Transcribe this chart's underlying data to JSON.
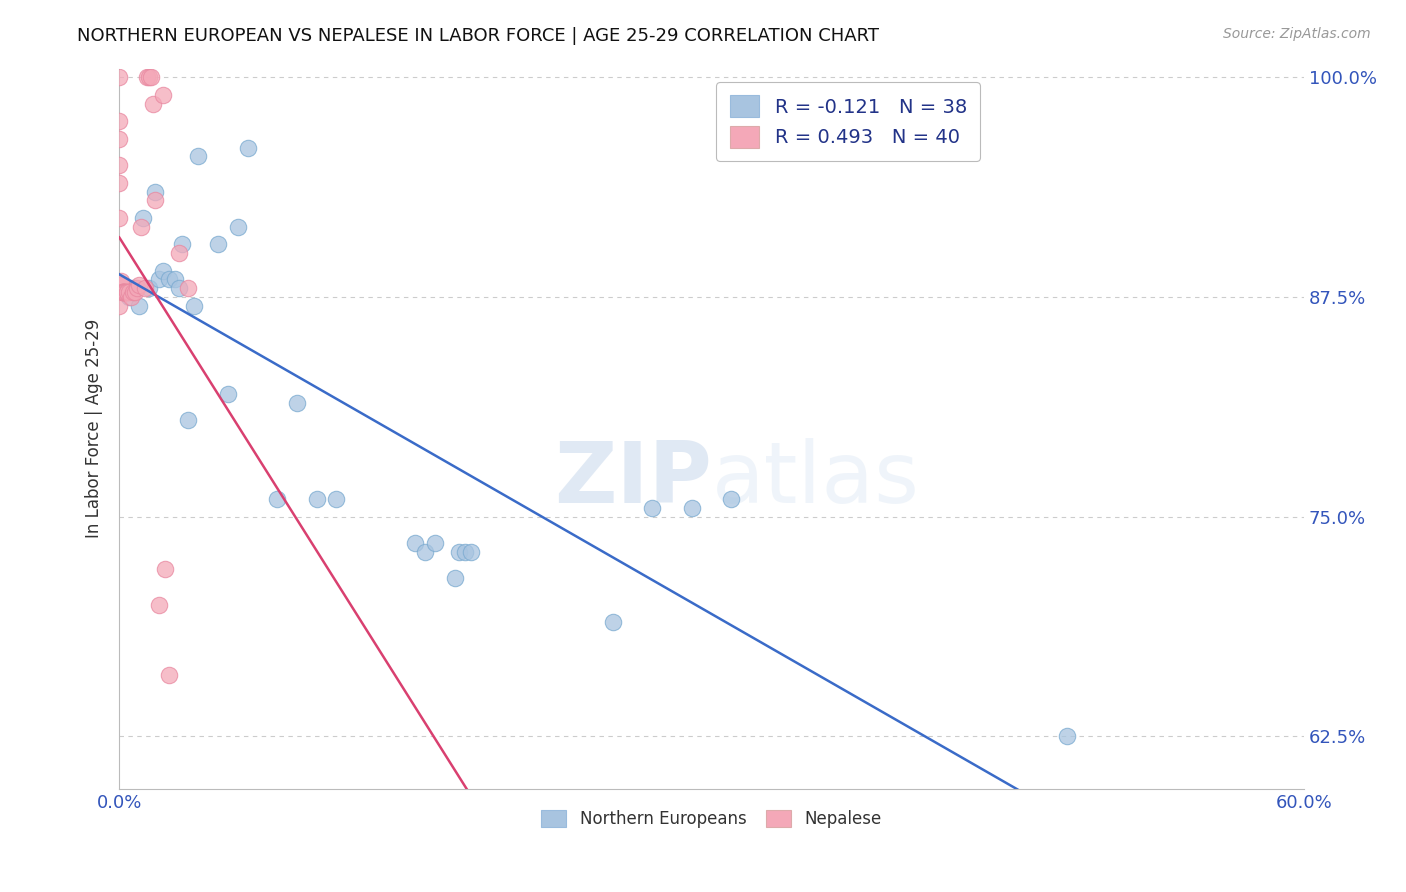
{
  "title": "NORTHERN EUROPEAN VS NEPALESE IN LABOR FORCE | AGE 25-29 CORRELATION CHART",
  "source": "Source: ZipAtlas.com",
  "ylabel": "In Labor Force | Age 25-29",
  "xlim": [
    0.0,
    0.6
  ],
  "ylim": [
    0.595,
    1.005
  ],
  "xticks": [
    0.0,
    0.1,
    0.2,
    0.3,
    0.4,
    0.5,
    0.6
  ],
  "xticklabels": [
    "0.0%",
    "",
    "",
    "",
    "",
    "",
    "60.0%"
  ],
  "yticks": [
    0.625,
    0.75,
    0.875,
    1.0
  ],
  "yticklabels": [
    "62.5%",
    "75.0%",
    "87.5%",
    "100.0%"
  ],
  "legend_blue_label": "R = -0.121   N = 38",
  "legend_pink_label": "R = 0.493   N = 40",
  "blue_color": "#a8c4e0",
  "pink_color": "#f4a8b8",
  "blue_line_color": "#3a6bc8",
  "pink_line_color": "#d94070",
  "blue_points_x": [
    0.002,
    0.003,
    0.005,
    0.007,
    0.008,
    0.01,
    0.012,
    0.015,
    0.018,
    0.02,
    0.022,
    0.025,
    0.028,
    0.03,
    0.032,
    0.035,
    0.038,
    0.04,
    0.05,
    0.055,
    0.06,
    0.065,
    0.08,
    0.09,
    0.1,
    0.11,
    0.15,
    0.155,
    0.16,
    0.17,
    0.172,
    0.175,
    0.178,
    0.25,
    0.27,
    0.29,
    0.31,
    0.48
  ],
  "blue_points_y": [
    0.88,
    0.88,
    0.875,
    0.88,
    0.88,
    0.87,
    0.92,
    0.88,
    0.935,
    0.885,
    0.89,
    0.885,
    0.885,
    0.88,
    0.905,
    0.805,
    0.87,
    0.955,
    0.905,
    0.82,
    0.915,
    0.96,
    0.76,
    0.815,
    0.76,
    0.76,
    0.735,
    0.73,
    0.735,
    0.715,
    0.73,
    0.73,
    0.73,
    0.69,
    0.755,
    0.755,
    0.76,
    0.625
  ],
  "pink_points_x": [
    0.0,
    0.0,
    0.0,
    0.0,
    0.0,
    0.0,
    0.0,
    0.001,
    0.001,
    0.001,
    0.001,
    0.001,
    0.002,
    0.002,
    0.002,
    0.002,
    0.002,
    0.003,
    0.003,
    0.004,
    0.004,
    0.005,
    0.006,
    0.007,
    0.008,
    0.009,
    0.01,
    0.011,
    0.013,
    0.014,
    0.015,
    0.016,
    0.017,
    0.018,
    0.02,
    0.022,
    0.023,
    0.025,
    0.03,
    0.035
  ],
  "pink_points_y": [
    1.0,
    0.975,
    0.965,
    0.95,
    0.94,
    0.92,
    0.87,
    0.88,
    0.882,
    0.882,
    0.882,
    0.884,
    0.878,
    0.878,
    0.878,
    0.878,
    0.878,
    0.878,
    0.878,
    0.878,
    0.878,
    0.878,
    0.875,
    0.878,
    0.878,
    0.88,
    0.882,
    0.915,
    0.88,
    1.0,
    1.0,
    1.0,
    0.985,
    0.93,
    0.7,
    0.99,
    0.72,
    0.66,
    0.9,
    0.88
  ],
  "watermark_zip": "ZIP",
  "watermark_atlas": "atlas",
  "background_color": "#ffffff",
  "grid_color": "#cccccc"
}
